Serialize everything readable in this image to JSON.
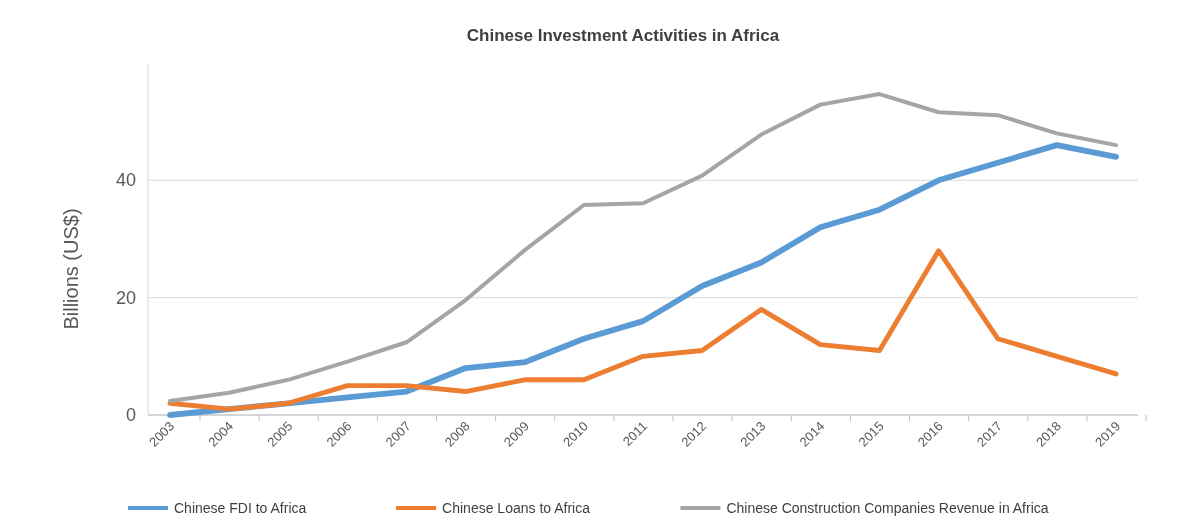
{
  "chart_data": {
    "type": "line",
    "title": "Chinese Investment Activities in Africa",
    "ylabel": "Billions (US$)",
    "categories": [
      "2003",
      "2004",
      "2005",
      "2006",
      "2007",
      "2008",
      "2009",
      "2010",
      "2011",
      "2012",
      "2013",
      "2014",
      "2015",
      "2016",
      "2017",
      "2018",
      "2019"
    ],
    "series": [
      {
        "name": "Chinese FDI to Africa",
        "color": "#5b9bd5",
        "values": [
          0,
          1,
          2,
          3,
          4,
          8,
          9,
          13,
          16,
          22,
          26,
          32,
          35,
          40,
          43,
          46,
          44
        ]
      },
      {
        "name": "Chinese Loans to Africa",
        "color": "#ed7d31",
        "values": [
          2,
          1,
          2,
          5,
          5,
          4,
          6,
          6,
          10,
          11,
          18,
          12,
          11,
          28,
          13,
          10,
          7
        ]
      },
      {
        "name": "Chinese Construction Companies Revenue in Africa",
        "color": "#a5a5a5",
        "values": [
          2.4,
          3.8,
          6.0,
          9.1,
          12.4,
          19.6,
          28.1,
          35.8,
          36.1,
          40.8,
          47.8,
          52.9,
          54.7,
          51.6,
          51.1,
          48.0,
          46.0
        ]
      }
    ],
    "ylim": [
      0,
      60
    ],
    "yticks": [
      0,
      20,
      40
    ],
    "grid": "y",
    "legend": "bottom",
    "marker": "none",
    "line_style": "solid"
  }
}
